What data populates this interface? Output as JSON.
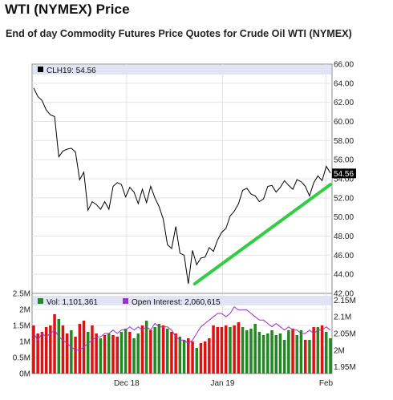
{
  "page": {
    "title": "WTI (NYMEX) Price",
    "subtitle": "End of day Commodity Futures Price Quotes for Crude Oil WTI (NYMEX)"
  },
  "colors": {
    "price_line": "#000000",
    "trend_line": "#33cc44",
    "up_bar": "#228822",
    "down_bar": "#dd1111",
    "open_interest": "#9933cc",
    "legend_band": "#e3e3f6",
    "last_price_box": "#000000"
  },
  "chart_data": [
    {
      "type": "line",
      "legend_label": "CLH19: 54.56",
      "last_price_label": "54.56",
      "x_tick_labels": [
        "Dec 18",
        "Jan 19",
        "Feb"
      ],
      "y_tick_labels": [
        "66.00",
        "64.00",
        "62.00",
        "60.00",
        "58.00",
        "56.00",
        "54.00",
        "52.00",
        "50.00",
        "48.00",
        "46.00",
        "44.00",
        "42.00"
      ],
      "ylim": [
        42,
        66
      ],
      "grid": true,
      "y_axis_side": "right",
      "series": [
        {
          "values": [
            63.5,
            62.6,
            62.2,
            61.2,
            60.7,
            60.5,
            56.3,
            56.9,
            57.1,
            57.2,
            56.8,
            53.9,
            54.7,
            50.7,
            51.6,
            51.3,
            50.8,
            51.6,
            50.8,
            53.2,
            53.6,
            53.4,
            52.1,
            53.1,
            52.6,
            51.4,
            52.9,
            51.5,
            53.2,
            52.0,
            51.1,
            49.8,
            47.1,
            46.7,
            49.0,
            46.2,
            46.0,
            43.0,
            46.5,
            45.0,
            45.7,
            45.8,
            46.8,
            46.4,
            47.6,
            48.4,
            48.8,
            50.1,
            50.6,
            51.4,
            52.8,
            53.0,
            52.4,
            52.2,
            51.6,
            51.9,
            53.2,
            53.3,
            52.6,
            53.1,
            53.8,
            53.3,
            52.9,
            53.9,
            53.7,
            53.2,
            52.2,
            53.6,
            54.3,
            53.8,
            55.3,
            54.6
          ]
        },
        {
          "name": "trend",
          "x": [
            38.5,
            71
          ],
          "values": [
            43.0,
            53.4
          ]
        }
      ]
    },
    {
      "type": "bar",
      "legend": [
        {
          "label": "Vol: 1,101,361"
        },
        {
          "label": "Open Interest: 2,060,615"
        }
      ],
      "x_tick_labels": [
        "Dec 18",
        "Jan 19",
        "Feb"
      ],
      "y_left_tick_labels": [
        "2.5M",
        "2M",
        "1.5M",
        "1M",
        "0.5M",
        "0M"
      ],
      "y_right_tick_labels": [
        "2.15M",
        "2.1M",
        "2.05M",
        "2M",
        "1.95M"
      ],
      "ylim_left": [
        0,
        2500000
      ],
      "ylim_right": [
        1930000,
        2170000
      ],
      "volume": [
        1500000,
        1250000,
        1300000,
        1450000,
        1500000,
        1850000,
        1700000,
        1500000,
        1250000,
        1350000,
        1150000,
        1550000,
        1650000,
        1300000,
        1500000,
        1250000,
        1100000,
        1200000,
        1250000,
        1200000,
        1150000,
        1300000,
        1400000,
        1300000,
        1100000,
        1250000,
        1500000,
        1650000,
        1350000,
        1450000,
        1550000,
        1500000,
        1400000,
        1300000,
        1250000,
        1150000,
        1050000,
        1100000,
        1000000,
        800000,
        950000,
        1000000,
        1100000,
        1500000,
        1450000,
        1450000,
        1500000,
        1450000,
        1500000,
        1600000,
        1450000,
        1350000,
        1400000,
        1550000,
        1300000,
        1200000,
        1250000,
        1350000,
        1200000,
        1250000,
        1050000,
        1350000,
        1400000,
        1200000,
        1350000,
        1050000,
        1050000,
        1450000,
        1450000,
        1500000,
        1300000,
        1100000
      ],
      "volume_direction": [
        "d",
        "d",
        "d",
        "d",
        "d",
        "d",
        "u",
        "d",
        "d",
        "u",
        "d",
        "d",
        "d",
        "u",
        "d",
        "d",
        "u",
        "d",
        "u",
        "d",
        "d",
        "u",
        "u",
        "d",
        "u",
        "u",
        "d",
        "u",
        "d",
        "u",
        "u",
        "d",
        "u",
        "d",
        "d",
        "u",
        "u",
        "d",
        "d",
        "u",
        "d",
        "d",
        "d",
        "d",
        "d",
        "d",
        "d",
        "u",
        "d",
        "d",
        "u",
        "u",
        "u",
        "u",
        "u",
        "u",
        "u",
        "u",
        "u",
        "u",
        "u",
        "u",
        "d",
        "u",
        "u",
        "d",
        "u",
        "d",
        "u",
        "d",
        "u",
        "u"
      ],
      "open_interest": [
        2050000,
        2030000,
        2050000,
        2040000,
        2050000,
        2060000,
        2040000,
        2030000,
        2020000,
        2010000,
        2000000,
        2000000,
        2010000,
        2020000,
        2030000,
        2040000,
        2040000,
        2050000,
        2050000,
        2060000,
        2050000,
        2060000,
        2060000,
        2070000,
        2060000,
        2070000,
        2060000,
        2070000,
        2060000,
        2080000,
        2070000,
        2070000,
        2070000,
        2060000,
        2040000,
        2030000,
        2030000,
        2020000,
        2030000,
        2050000,
        2070000,
        2080000,
        2090000,
        2100000,
        2110000,
        2110000,
        2100000,
        2110000,
        2130000,
        2120000,
        2120000,
        2120000,
        2110000,
        2100000,
        2090000,
        2090000,
        2080000,
        2070000,
        2080000,
        2070000,
        2060000,
        2070000,
        2060000,
        2060000,
        2050000,
        2050000,
        2060000,
        2050000,
        2060000,
        2060000,
        2070000,
        2060000
      ]
    }
  ]
}
